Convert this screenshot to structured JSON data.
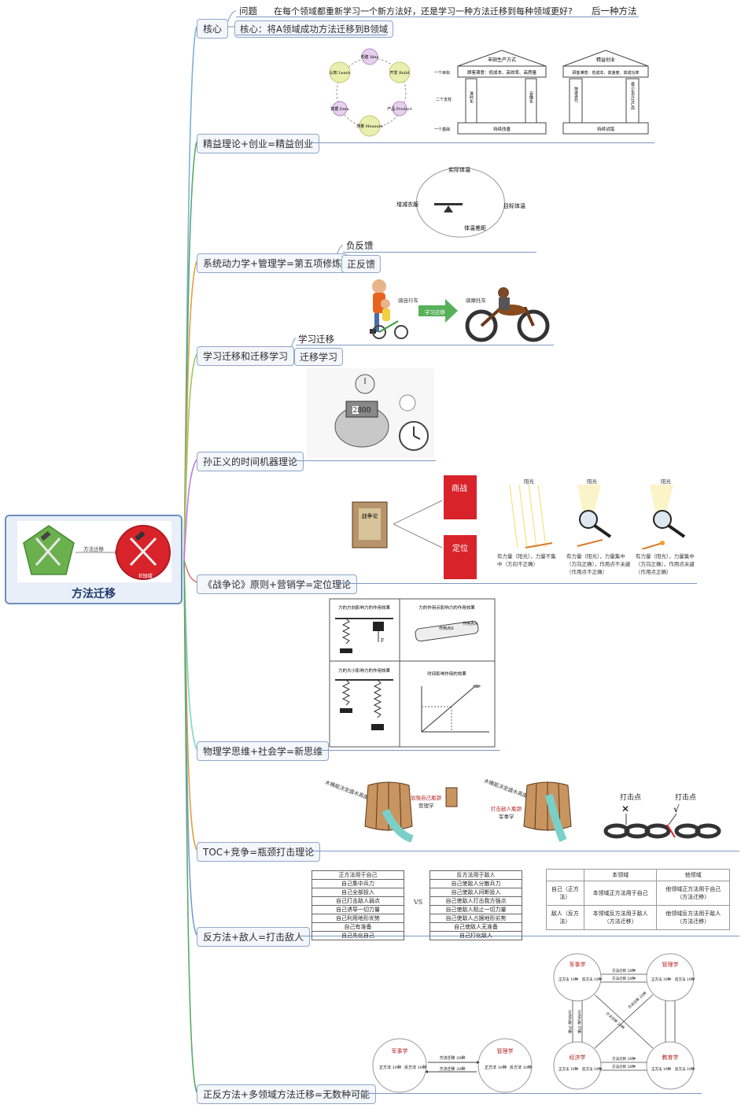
{
  "root": {
    "title": "方法迁移",
    "arrow_label": "方法迁移",
    "left_caption": "A领域",
    "right_caption": "B领域"
  },
  "core": {
    "label": "核心",
    "question_label": "问题",
    "question_text": "在每个领域都重新学习一个新方法好，还是学习一种方法迁移到每种领域更好?",
    "answer_text": "后一种方法",
    "core_text": "核心：将A领域成功方法迁移到B领域"
  },
  "branches": {
    "lean": {
      "label": "精益理论+创业=精益创业",
      "cycle": [
        "构建 Idea",
        "开发 Build",
        "产品 Product",
        "测量 Measure",
        "数据 Data",
        "认知 Learn"
      ],
      "temple1": {
        "title": "丰田生产方式",
        "goal_row": "一个目标",
        "goal": "顾客满意：低成本、高效率、高质量",
        "pillars_row": "二个支柱",
        "pillar_left": "准时化",
        "pillar_right": "自働化",
        "base_row": "一个基础",
        "base": "持续改善"
      },
      "temple2": {
        "title": "精益创业",
        "goal": "顾客满意：低成本、高速度、高成功率",
        "pillar_left": "快速迭代",
        "pillar_right": "最小化可行产品",
        "base": "持续试错"
      }
    },
    "systems": {
      "label": "系统动力学+管理学=第五项修炼",
      "leaves": [
        "负反馈",
        "正反馈"
      ],
      "loop": [
        "实际体温",
        "目标体温",
        "体温差距",
        "增减衣服"
      ]
    },
    "transfer": {
      "label": "学习迁移和迁移学习",
      "leaves": [
        "学习迁移",
        "迁移学习"
      ],
      "left_caption": "骑自行车",
      "arrow_caption": "学习迁移",
      "right_caption": "骑摩托车"
    },
    "timemachine": {
      "label": "孙正义的时间机器理论",
      "display": "2800"
    },
    "war": {
      "label": "《战争论》原则+营销学=定位理论",
      "book": "战争论",
      "book1": "商战",
      "book2": "定位",
      "lens_titles": [
        "阳光",
        "阳光",
        "阳光"
      ],
      "lens_captions": [
        "有力量（阳光），力量不集中（方向不正确）",
        "有力量（阳光），力量集中（方向正确），作用点不关键（作用点不正确）",
        "有力量（阳光），力量集中（方向正确），作用点关键（作用点正确）"
      ]
    },
    "physics": {
      "label": "物理学思维+社会学=新思维",
      "panels": [
        "力的方向影响力的作用效果",
        "力的作用点影响力的作用效果",
        "力的大小影响力的作用效果",
        "时间影响作用的效果"
      ],
      "point_label": "作用点A",
      "point_label2": "作用点B",
      "force_label": "F"
    },
    "toc": {
      "label": "TOC+竞争=瓶颈打击理论",
      "barrel_caption1": "木桶能决定盛水高度",
      "barrel_caption2": "加强自己瓶颈",
      "barrel_caption3": "管理学",
      "barrel_caption4": "木桶能决定盛水高度",
      "barrel_caption5": "打击敌人瓶颈",
      "barrel_caption6": "军事学",
      "chain_labels": [
        "打击点",
        "打击点"
      ]
    },
    "enemy": {
      "label": "反方法+敌人=打击敌人",
      "left_header": "正方法用于自己",
      "left_rows": [
        "自己集中兵力",
        "自己全部投入",
        "自己打击敌人弱点",
        "自己诱导一切力量",
        "自己利用地形优势",
        "自己有准备",
        "自己先化自己"
      ],
      "vs": "VS",
      "right_header": "反方法用于敌人",
      "right_rows": [
        "自己使敌人分散兵力",
        "自己使敌人间断投入",
        "自己使敌人打击我方强点",
        "自己使敌人阻止一切力量",
        "自己使敌人占据地形劣势",
        "自己使敌人无准备",
        "自己打化敌人"
      ],
      "matrix": {
        "col_headers": [
          "本领域",
          "他领域"
        ],
        "row_headers": [
          "自己（正方法）",
          "敌人（反方法）"
        ],
        "cells": [
          [
            "本领域正方法用于自己",
            "他领域正方法用于自己（方法迁移）"
          ],
          [
            "本领域反方法用于敌人（方法迁移）",
            "他领域反方法用于敌人（方法迁移）"
          ]
        ]
      }
    },
    "multi": {
      "label": "正反方法+多领域方法迁移=无数种可能",
      "small": {
        "left": "军事学",
        "right": "管理学",
        "left_inner": [
          "正方法 10种",
          "反方法 10种"
        ],
        "right_inner": [
          "正方法 10种",
          "反方法 10种"
        ],
        "arrow_top": "方法迁移 20种",
        "arrow_bottom": "方法迁移 20种"
      },
      "big": {
        "nodes": [
          "军事学",
          "管理学",
          "经济学",
          "教育学"
        ],
        "inner": [
          "正方法 10种",
          "反方法 10种"
        ],
        "edge_labels": [
          "方法迁移 20种",
          "方法迁移 20种",
          "方法迁移 20种",
          "方法迁移 20种",
          "方法迁移 20种",
          "方法迁移 20种",
          "方法迁移 20种",
          "方法迁移 20种"
        ]
      }
    }
  },
  "colors": {
    "node_border": "#8fa8c8",
    "root_border": "#6e8fc0",
    "trunk_green": "#5aaa6a",
    "trunk_orange": "#e0a040",
    "trunk_blue": "#7bb0d8",
    "red": "#d9232b",
    "green": "#6ab04c"
  }
}
